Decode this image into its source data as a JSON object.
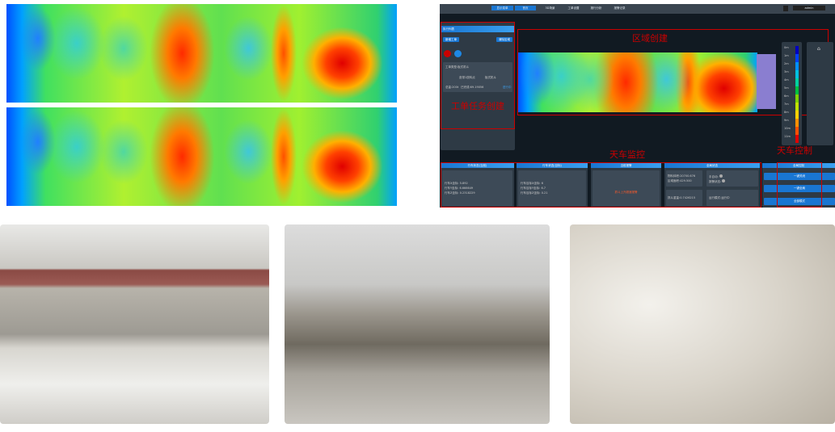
{
  "heatmaps": {
    "count": 2
  },
  "dashboard": {
    "nav": [
      "显示菜单",
      "首页",
      "3D场景",
      "工单设置",
      "报行分析",
      "报警记录"
    ],
    "user": "admin",
    "left_panel": {
      "title": "执行列表",
      "new_order": "新增工单",
      "clear_area": "清除区域",
      "task_title": "工单类型:板式机斗",
      "route_from": "皮带1放料点",
      "route_to": "板式机斗",
      "weight": "总量:200t",
      "done": "已完成:69.19056",
      "status": "进行中"
    },
    "annotations": {
      "area_create": "区域创建",
      "order_create": "工单任务创建",
      "crane_monitor": "天车监控",
      "crane_control": "天车控制"
    },
    "legend": [
      "0m",
      "1m",
      "2m",
      "3m",
      "4m",
      "5m",
      "6m",
      "7m",
      "8m",
      "9m",
      "10m",
      "11m"
    ],
    "legend_colors": [
      "#0000c0",
      "#0040ff",
      "#0090ff",
      "#00c0e0",
      "#00d0a0",
      "#00c040",
      "#80d000",
      "#c0e000",
      "#ffd000",
      "#ff9000",
      "#ff5000",
      "#e00000"
    ],
    "panels": {
      "current": {
        "title": "行车状态(当前)",
        "x_label": "行车X坐标:",
        "x": "5.892",
        "y_label": "行车Y坐标:",
        "y": "6.666649",
        "z_label": "行车Z坐标:",
        "z": "0.2318229"
      },
      "target": {
        "title": "行车状态(目标)",
        "x_label": "行车目标X坐标:",
        "x": "6",
        "y_label": "行车目标Y坐标:",
        "y": "6.7",
        "z_label": "行车目标Z坐标:",
        "z": "0.21"
      },
      "alarm": {
        "title": "当前报警",
        "text": "抓斗上升超速报警"
      },
      "global": {
        "title": "全局状态",
        "a_label": "物料体积:",
        "a": "20700.676",
        "b_label": "区域面积:",
        "b": "429.500",
        "c_label": "抓斗重量:",
        "c": "0.7426215",
        "d_label": "手自动:",
        "e_label": "报警状态:",
        "f_label": "运行模式:",
        "f": "运行中"
      },
      "control": {
        "title": "全局控制",
        "b1": "一键关闭",
        "b2": "一键全扇",
        "b3": "全部模式"
      }
    }
  },
  "photos": [
    "overhead-crane-warehouse",
    "crane-grab-equipment",
    "powder-pile"
  ]
}
